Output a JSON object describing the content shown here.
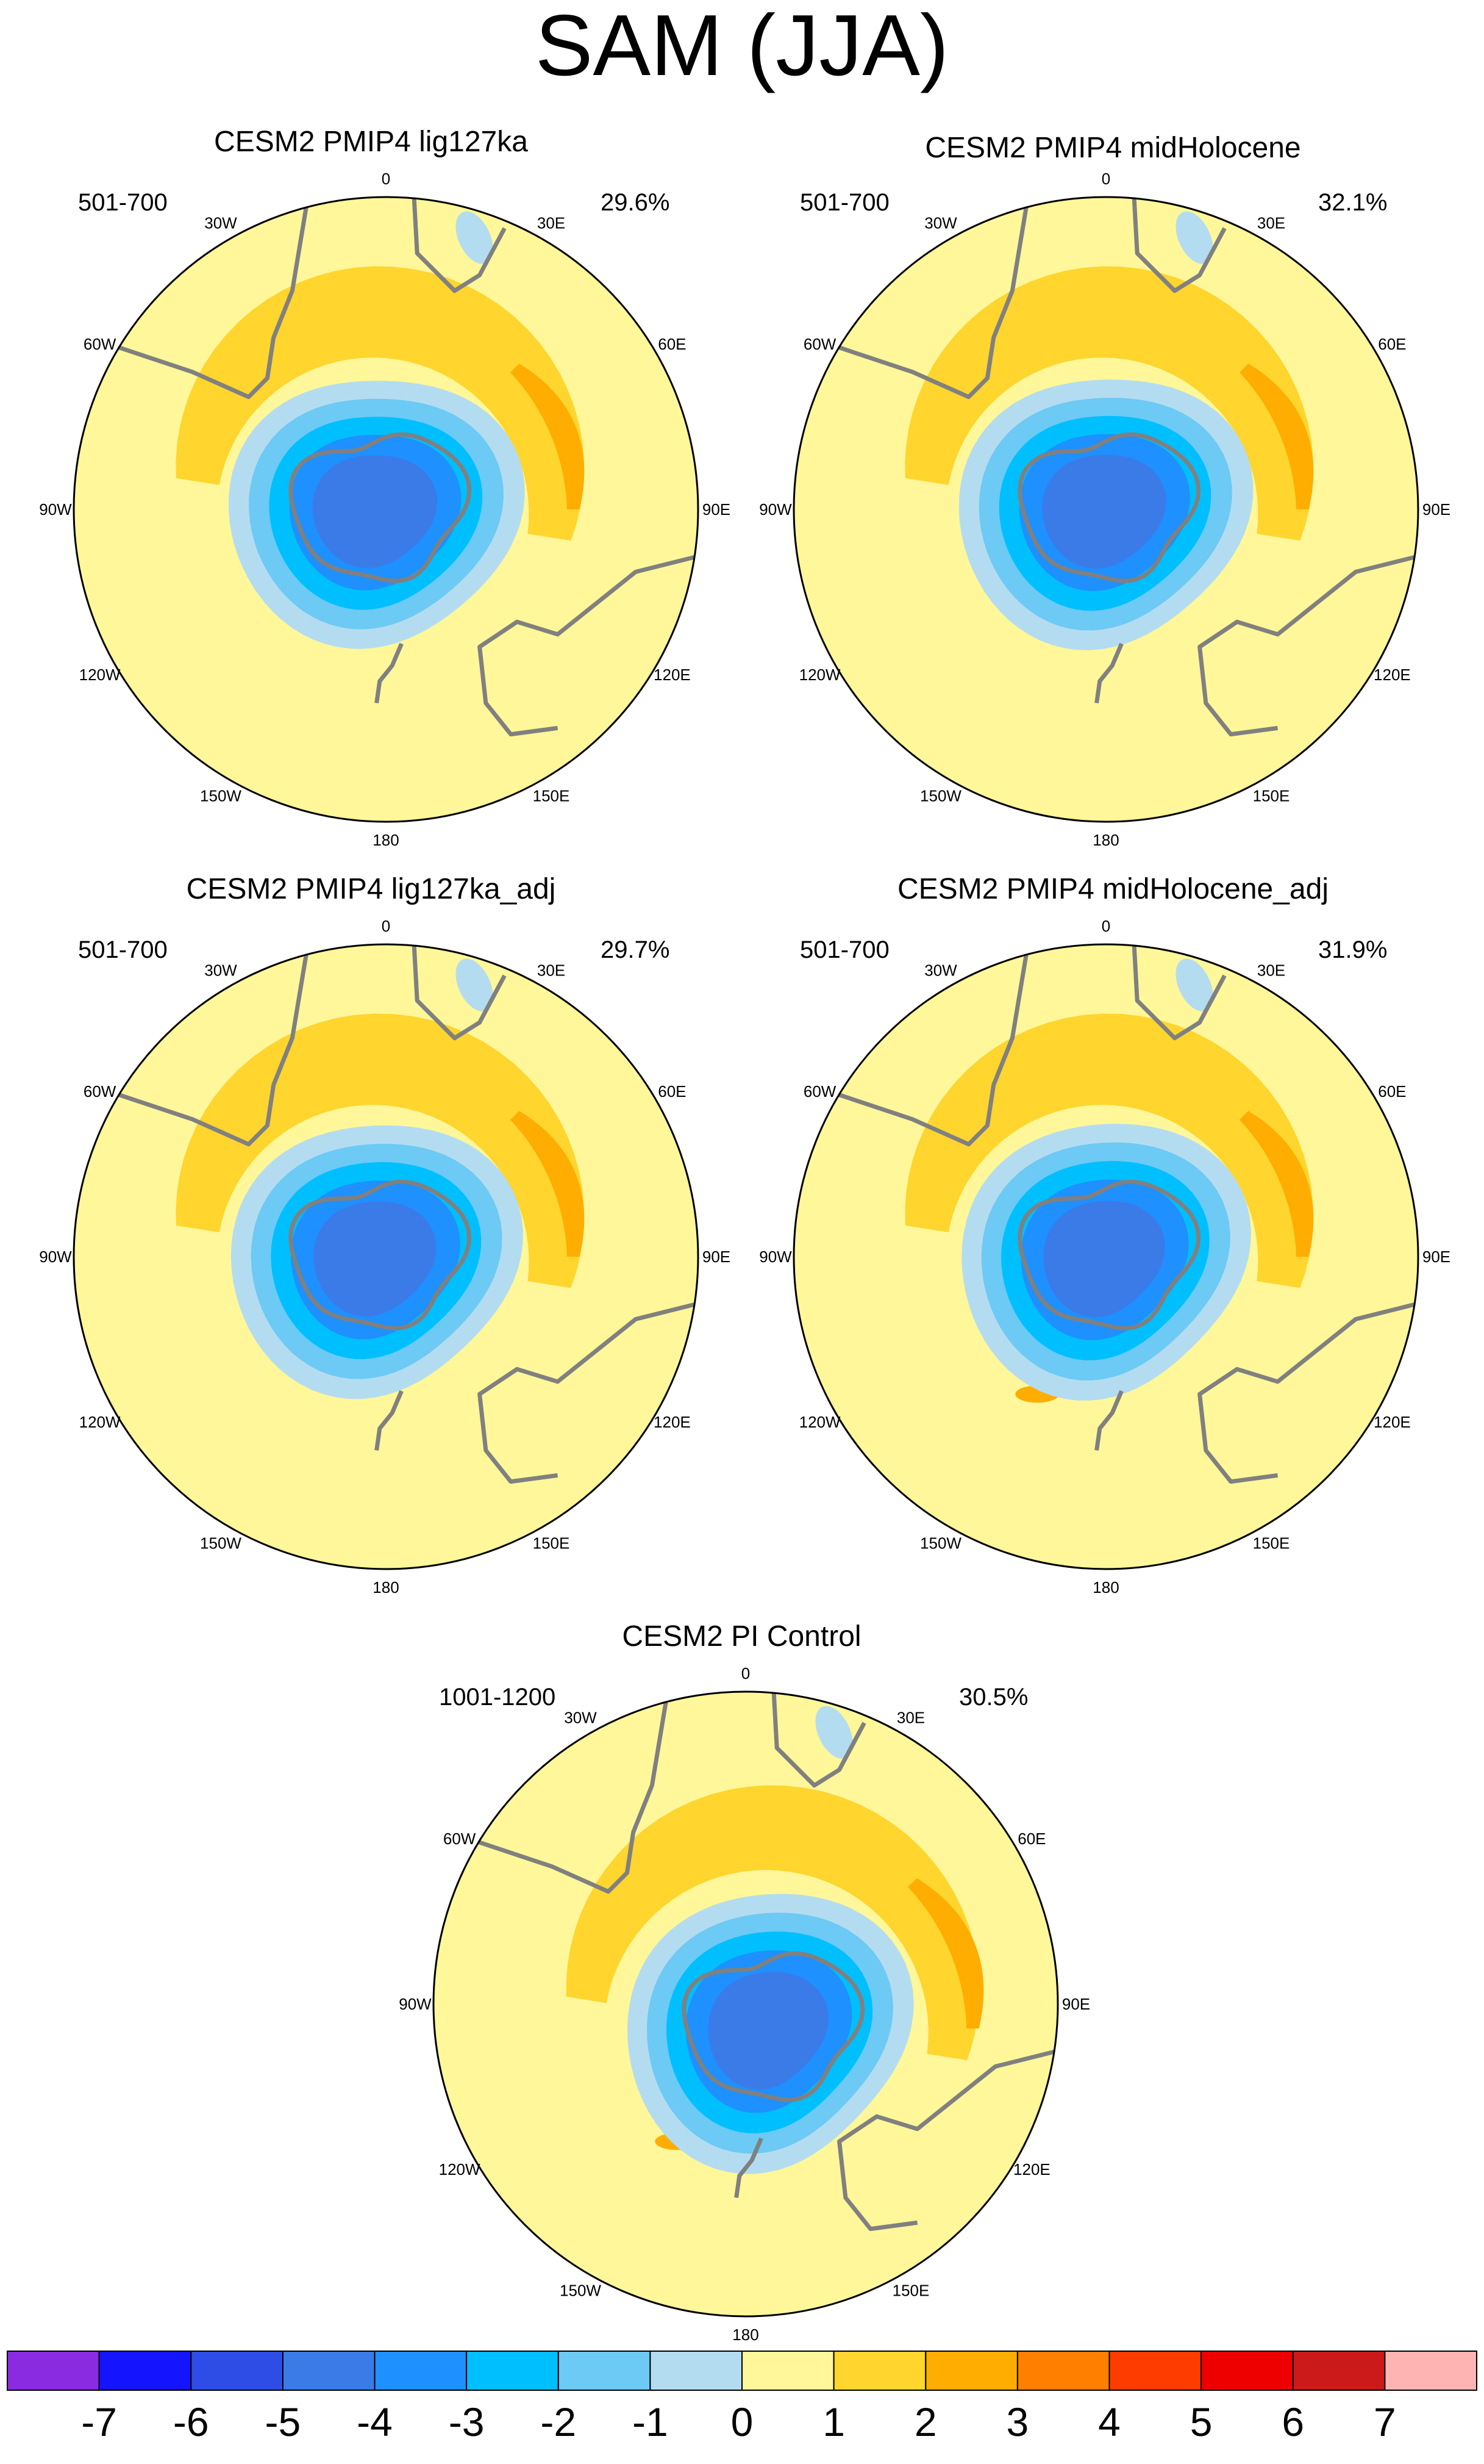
{
  "title": "SAM (JJA)",
  "panels": [
    {
      "title": "CESM2 PMIP4 lig127ka",
      "years": "501-700",
      "variance": "29.6%"
    },
    {
      "title": "CESM2 PMIP4 midHolocene",
      "years": "501-700",
      "variance": "32.1%"
    },
    {
      "title": "CESM2 PMIP4 lig127ka_adj",
      "years": "501-700",
      "variance": "29.7%"
    },
    {
      "title": "CESM2 PMIP4 midHolocene_adj",
      "years": "501-700",
      "variance": "31.9%"
    },
    {
      "title": "CESM2 PI Control",
      "years": "1001-1200",
      "variance": "30.5%"
    }
  ],
  "lon_labels": [
    "0",
    "30E",
    "60E",
    "90E",
    "120E",
    "150E",
    "180",
    "150W",
    "120W",
    "90W",
    "60W",
    "30W"
  ],
  "colorbar": {
    "labels": [
      "-7",
      "-6",
      "-5",
      "-4",
      "-3",
      "-2",
      "-1",
      "0",
      "1",
      "2",
      "3",
      "4",
      "5",
      "6",
      "7"
    ],
    "colors": [
      "#8a2be2",
      "#1414ff",
      "#2e4de6",
      "#3a7be8",
      "#1e90ff",
      "#00bfff",
      "#6ccaf5",
      "#b4dcf0",
      "#fff799",
      "#ffd52e",
      "#ffad00",
      "#ff7f00",
      "#ff3c00",
      "#ee0000",
      "#cc1a1a",
      "#ffb4b4"
    ]
  }
}
